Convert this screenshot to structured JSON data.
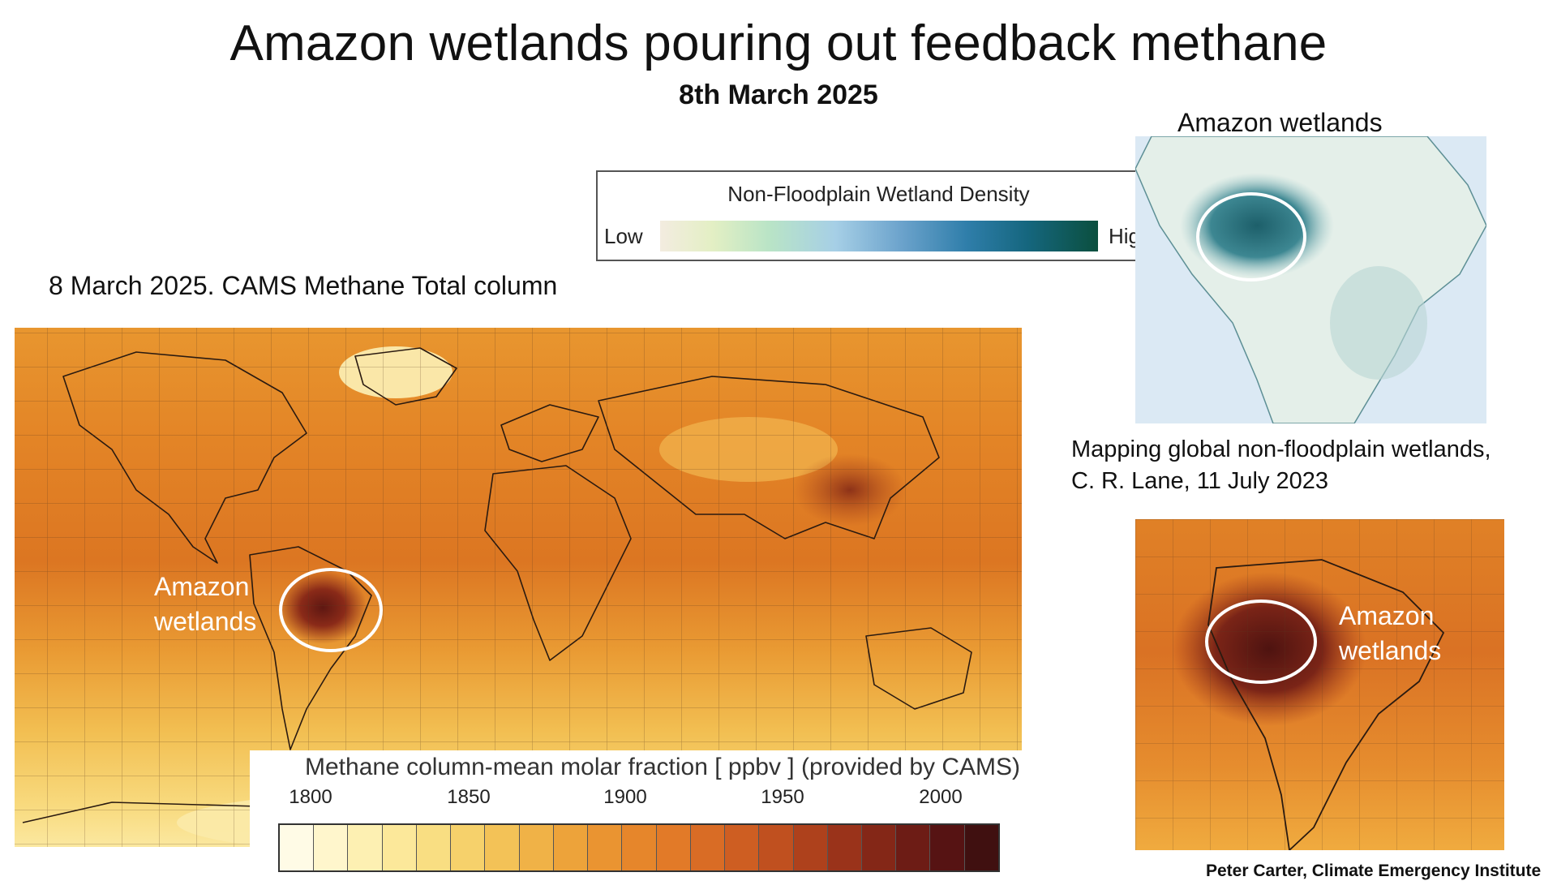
{
  "title": "Amazon wetlands pouring out feedback methane",
  "subtitle": "8th March 2025",
  "main_map": {
    "caption": "8 March 2025. CAMS Methane Total column",
    "annotation": "Amazon\nwetlands"
  },
  "methane_colorbar": {
    "title": "Methane column-mean molar fraction [ ppbv ] (provided by CAMS)",
    "ticks": [
      "1800",
      "1850",
      "1900",
      "1950",
      "2000"
    ],
    "colors": [
      "#fffbe6",
      "#fff6cc",
      "#fdf0b2",
      "#fce89a",
      "#f9de82",
      "#f6d16b",
      "#f3c257",
      "#f0b247",
      "#eda33a",
      "#ea9431",
      "#e6862b",
      "#e27a28",
      "#d96c25",
      "#ce5e22",
      "#c0501f",
      "#ae411c",
      "#9a331a",
      "#842717",
      "#6d1c15",
      "#561313",
      "#401010"
    ]
  },
  "wetland_legend": {
    "title": "Non-Floodplain Wetland Density",
    "low_label": "Low",
    "high_label": "High"
  },
  "sa_wetland_map": {
    "title": "Amazon wetlands"
  },
  "mapping_caption": {
    "line1": "Mapping global non-floodplain wetlands,",
    "line2": "C. R. Lane, 11 July 2023"
  },
  "sa_methane_map": {
    "annotation": "Amazon\nwetlands"
  },
  "credit": "Peter Carter, Climate Emergency Institute"
}
